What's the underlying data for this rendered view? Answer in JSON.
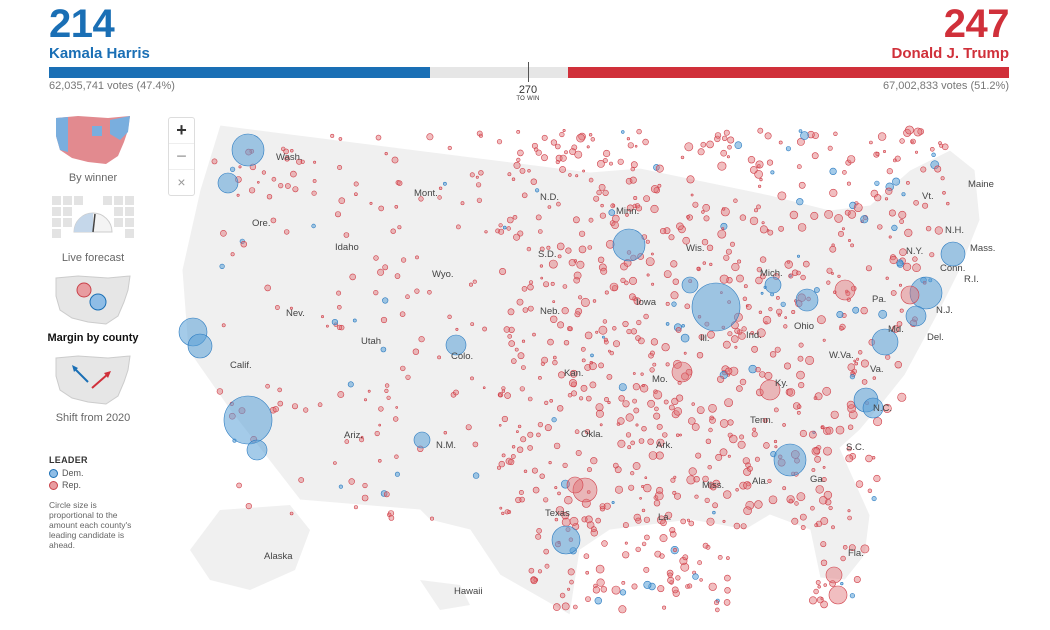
{
  "harris": {
    "ev": "214",
    "name": "Kamala Harris",
    "votes": "62,035,741 votes (47.4%)",
    "bar_share": 0.397,
    "color": "#1a6fb5"
  },
  "trump": {
    "ev": "247",
    "name": "Donald J. Trump",
    "votes": "67,002,833 votes (51.2%)",
    "bar_share": 0.459,
    "color": "#d0303a"
  },
  "to_win": {
    "number": "270",
    "label": "TO WIN"
  },
  "views": [
    {
      "label": "By winner"
    },
    {
      "label": "Live forecast"
    },
    {
      "label": "Margin by county"
    },
    {
      "label": "Shift from 2020"
    }
  ],
  "legend": {
    "title": "LEADER",
    "dem": "Dem.",
    "rep": "Rep.",
    "note": "Circle size is proportional to the amount each county's leading candidate is ahead."
  },
  "zoom": {
    "in": "+",
    "out": "−",
    "reset": "×"
  },
  "states": [
    "Wash.",
    "Ore.",
    "Calif.",
    "Nev.",
    "Idaho",
    "Mont.",
    "Wyo.",
    "Utah",
    "Ariz.",
    "N.M.",
    "Colo.",
    "N.D.",
    "S.D.",
    "Neb.",
    "Kan.",
    "Okla.",
    "Texas",
    "Minn.",
    "Iowa",
    "Mo.",
    "Ark.",
    "La.",
    "Wis.",
    "Ill.",
    "Miss.",
    "Mich.",
    "Ind.",
    "Ky.",
    "Tenn.",
    "Ala.",
    "Ohio",
    "Ga.",
    "Fla.",
    "S.C.",
    "N.C.",
    "Va.",
    "W.Va.",
    "Pa.",
    "Md.",
    "Del.",
    "N.J.",
    "N.Y.",
    "Conn.",
    "R.I.",
    "Mass.",
    "Vt.",
    "N.H.",
    "Maine",
    "Alaska",
    "Hawaii"
  ]
}
